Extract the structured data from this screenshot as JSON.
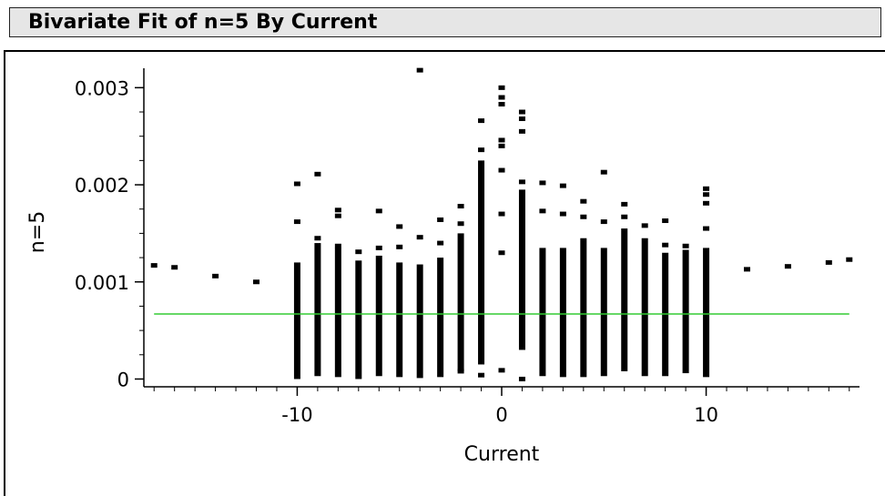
{
  "header": {
    "title": "Bivariate Fit of n=5 By Current"
  },
  "chart_data": {
    "type": "scatter",
    "title": "Bivariate Fit of n=5 By Current",
    "xlabel": "Current",
    "ylabel": "n=5",
    "xlim": [
      -17.5,
      17.5
    ],
    "ylim": [
      -8e-05,
      0.0032
    ],
    "xticks": [
      -10,
      0,
      10
    ],
    "xtick_labels": [
      "-10",
      "0",
      "10"
    ],
    "yticks": [
      0,
      0.001,
      0.002,
      0.003
    ],
    "ytick_labels": [
      "0",
      "0.001",
      "0.002",
      "0.003"
    ],
    "grid": false,
    "legend": "none",
    "colors": {
      "points": "#000000",
      "fit_line": "#33cc33"
    },
    "fit_line": {
      "name": "mean",
      "y": 0.00067,
      "x_range": [
        -17,
        17
      ]
    },
    "points": [
      [
        -17,
        0.00117
      ],
      [
        -16,
        0.00115
      ],
      [
        -14,
        0.00106
      ],
      [
        -12,
        0.001
      ],
      [
        12,
        0.00113
      ],
      [
        14,
        0.00116
      ],
      [
        16,
        0.0012
      ],
      [
        17,
        0.00123
      ],
      [
        -4,
        0.00318
      ],
      [
        -9,
        0.00211
      ],
      [
        -10,
        0.00201
      ],
      [
        -10,
        0.00162
      ],
      [
        -9,
        0.00145
      ],
      [
        -8,
        0.00174
      ],
      [
        -8,
        0.00168
      ],
      [
        -8,
        0.00137
      ],
      [
        -7,
        0.00131
      ],
      [
        -6,
        0.00173
      ],
      [
        -6,
        0.00135
      ],
      [
        -5,
        0.00157
      ],
      [
        -5,
        0.00136
      ],
      [
        -4,
        0.00146
      ],
      [
        -3,
        0.00164
      ],
      [
        -3,
        0.0014
      ],
      [
        -2,
        0.00178
      ],
      [
        -2,
        0.0016
      ],
      [
        -1,
        0.00266
      ],
      [
        -1,
        0.00236
      ],
      [
        0,
        0.003
      ],
      [
        0,
        0.0029
      ],
      [
        0,
        0.00283
      ],
      [
        0,
        0.00246
      ],
      [
        0,
        0.0024
      ],
      [
        0,
        0.00215
      ],
      [
        0,
        0.0017
      ],
      [
        0,
        0.0013
      ],
      [
        1,
        0.00275
      ],
      [
        1,
        0.00268
      ],
      [
        1,
        0.00255
      ],
      [
        1,
        0.00203
      ],
      [
        2,
        0.00202
      ],
      [
        2,
        0.00173
      ],
      [
        3,
        0.00199
      ],
      [
        3,
        0.0017
      ],
      [
        4,
        0.00183
      ],
      [
        4,
        0.00167
      ],
      [
        5,
        0.00213
      ],
      [
        5,
        0.00162
      ],
      [
        6,
        0.0018
      ],
      [
        6,
        0.00167
      ],
      [
        7,
        0.00158
      ],
      [
        8,
        0.00163
      ],
      [
        8,
        0.00138
      ],
      [
        9,
        0.00137
      ],
      [
        10,
        0.00196
      ],
      [
        10,
        0.0019
      ],
      [
        10,
        0.00181
      ],
      [
        10,
        0.00155
      ],
      [
        -1,
        4e-05
      ],
      [
        1,
        0.0
      ],
      [
        0,
        9e-05
      ],
      [
        -2,
        8e-05
      ]
    ],
    "columns": [
      {
        "x": -10,
        "y_min": 0.0,
        "y_max": 0.0012
      },
      {
        "x": -9,
        "y_min": 3e-05,
        "y_max": 0.0014
      },
      {
        "x": -8,
        "y_min": 2e-05,
        "y_max": 0.00135
      },
      {
        "x": -7,
        "y_min": 0.0,
        "y_max": 0.00122
      },
      {
        "x": -6,
        "y_min": 3e-05,
        "y_max": 0.00127
      },
      {
        "x": -5,
        "y_min": 2e-05,
        "y_max": 0.0012
      },
      {
        "x": -4,
        "y_min": 1e-05,
        "y_max": 0.00118
      },
      {
        "x": -3,
        "y_min": 2e-05,
        "y_max": 0.00125
      },
      {
        "x": -2,
        "y_min": 8e-05,
        "y_max": 0.0015
      },
      {
        "x": -1,
        "y_min": 0.00015,
        "y_max": 0.00225
      },
      {
        "x": 1,
        "y_min": 0.0003,
        "y_max": 0.00195
      },
      {
        "x": 2,
        "y_min": 3e-05,
        "y_max": 0.00135
      },
      {
        "x": 3,
        "y_min": 2e-05,
        "y_max": 0.00135
      },
      {
        "x": 4,
        "y_min": 2e-05,
        "y_max": 0.00145
      },
      {
        "x": 5,
        "y_min": 3e-05,
        "y_max": 0.00135
      },
      {
        "x": 6,
        "y_min": 8e-05,
        "y_max": 0.00155
      },
      {
        "x": 7,
        "y_min": 3e-05,
        "y_max": 0.00145
      },
      {
        "x": 8,
        "y_min": 3e-05,
        "y_max": 0.0013
      },
      {
        "x": 9,
        "y_min": 6e-05,
        "y_max": 0.00133
      },
      {
        "x": 10,
        "y_min": 2e-05,
        "y_max": 0.00135
      }
    ]
  }
}
